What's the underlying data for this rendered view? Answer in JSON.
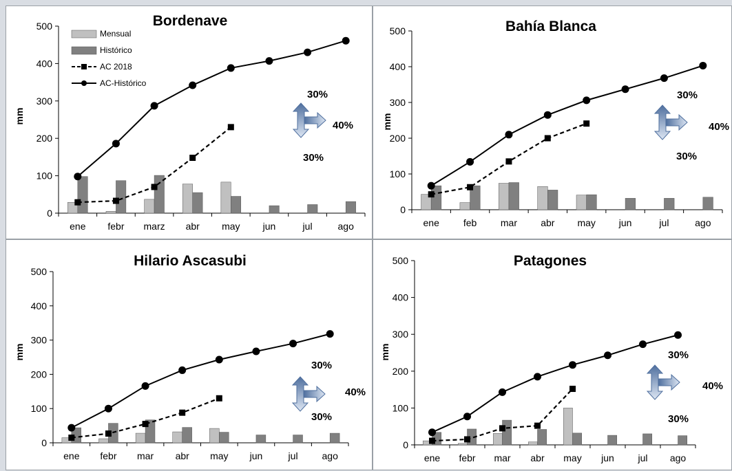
{
  "colors": {
    "mensual": "#c0c0c0",
    "historico": "#808080",
    "line": "#000000",
    "arrow": "#4f6f9e",
    "arrow_light": "#dde6f3"
  },
  "chart_data": [
    {
      "type": "bar",
      "title": "Bordenave",
      "ylabel": "mm",
      "ylim": [
        0,
        500
      ],
      "yticks": [
        0,
        100,
        200,
        300,
        400,
        500
      ],
      "categories": [
        "ene",
        "febr",
        "marz",
        "abr",
        "may",
        "jun",
        "jul",
        "ago"
      ],
      "series": [
        {
          "name": "Mensual",
          "kind": "bar",
          "values": [
            29,
            5,
            37,
            78,
            83,
            null,
            null,
            null
          ]
        },
        {
          "name": "Histórico",
          "kind": "bar",
          "values": [
            98,
            87,
            101,
            55,
            45,
            20,
            23,
            31
          ]
        },
        {
          "name": "AC 2018",
          "kind": "line-dashed",
          "marker": "square",
          "values": [
            29,
            33,
            70,
            148,
            230,
            null,
            null,
            null
          ]
        },
        {
          "name": "AC-Histórico",
          "kind": "line",
          "marker": "circle",
          "values": [
            98,
            186,
            287,
            342,
            388,
            407,
            430,
            461
          ]
        }
      ],
      "legend": "top-left",
      "annotation": {
        "up": "30%",
        "right": "40%",
        "down": "30%"
      }
    },
    {
      "type": "bar",
      "title": "Bahía Blanca",
      "ylabel": "mm",
      "ylim": [
        0,
        500
      ],
      "yticks": [
        0,
        100,
        200,
        300,
        400,
        500
      ],
      "categories": [
        "ene",
        "feb",
        "mar",
        "abr",
        "may",
        "jun",
        "jul",
        "ago"
      ],
      "series": [
        {
          "name": "Mensual",
          "kind": "bar",
          "values": [
            43,
            20,
            74,
            65,
            41,
            null,
            null,
            null
          ]
        },
        {
          "name": "Histórico",
          "kind": "bar",
          "values": [
            67,
            67,
            76,
            55,
            42,
            32,
            32,
            35
          ]
        },
        {
          "name": "AC 2018",
          "kind": "line-dashed",
          "marker": "square",
          "values": [
            43,
            63,
            135,
            200,
            241,
            null,
            null,
            null
          ]
        },
        {
          "name": "AC-Histórico",
          "kind": "line",
          "marker": "circle",
          "values": [
            67,
            134,
            210,
            265,
            306,
            337,
            368,
            403
          ]
        }
      ],
      "annotation": {
        "up": "30%",
        "right": "40%",
        "down": "30%"
      }
    },
    {
      "type": "bar",
      "title": "Hilario Ascasubi",
      "ylabel": "mm",
      "ylim": [
        0,
        500
      ],
      "yticks": [
        0,
        100,
        200,
        300,
        400,
        500
      ],
      "categories": [
        "ene",
        "febr",
        "mar",
        "abr",
        "may",
        "jun",
        "jul",
        "ago"
      ],
      "series": [
        {
          "name": "Mensual",
          "kind": "bar",
          "values": [
            15,
            12,
            28,
            32,
            42,
            null,
            null,
            null
          ]
        },
        {
          "name": "Histórico",
          "kind": "bar",
          "values": [
            44,
            57,
            67,
            45,
            31,
            23,
            23,
            28
          ]
        },
        {
          "name": "AC 2018",
          "kind": "line-dashed",
          "marker": "square",
          "values": [
            15,
            27,
            55,
            88,
            130,
            null,
            null,
            null
          ]
        },
        {
          "name": "AC-Histórico",
          "kind": "line",
          "marker": "circle",
          "values": [
            44,
            100,
            166,
            212,
            243,
            267,
            290,
            318
          ]
        }
      ],
      "annotation": {
        "up": "30%",
        "right": "40%",
        "down": "30%"
      }
    },
    {
      "type": "bar",
      "title": "Patagones",
      "ylabel": "mm",
      "ylim": [
        0,
        500
      ],
      "yticks": [
        0,
        100,
        200,
        300,
        400,
        500
      ],
      "categories": [
        "ene",
        "febr",
        "mar",
        "abr",
        "may",
        "jun",
        "jul",
        "ago"
      ],
      "series": [
        {
          "name": "Mensual",
          "kind": "bar",
          "values": [
            11,
            4,
            31,
            8,
            100,
            null,
            null,
            null
          ]
        },
        {
          "name": "Histórico",
          "kind": "bar",
          "values": [
            34,
            43,
            67,
            42,
            32,
            26,
            30,
            25
          ]
        },
        {
          "name": "AC 2018",
          "kind": "line-dashed",
          "marker": "square",
          "values": [
            11,
            15,
            45,
            52,
            152,
            null,
            null,
            null
          ]
        },
        {
          "name": "AC-Histórico",
          "kind": "line",
          "marker": "circle",
          "values": [
            34,
            77,
            143,
            185,
            217,
            243,
            273,
            298
          ]
        }
      ],
      "annotation": {
        "up": "30%",
        "right": "40%",
        "down": "30%"
      }
    }
  ]
}
